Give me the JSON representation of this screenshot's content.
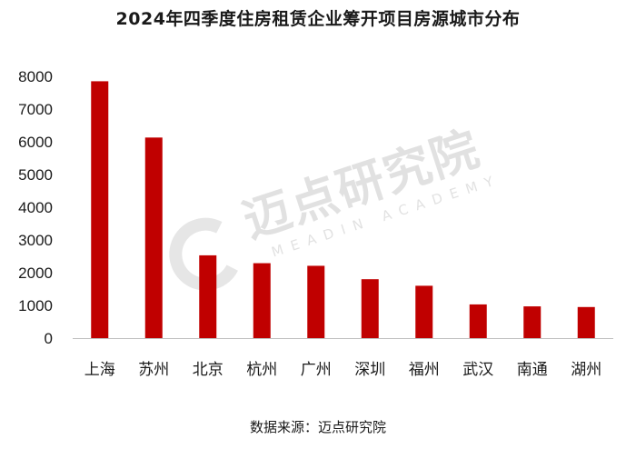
{
  "title": "2024年四季度住房租赁企业筹开项目房源城市分布",
  "source": "数据来源：迈点研究院",
  "watermark": {
    "cn": "迈点研究院",
    "en": "MEADIN ACADEMY"
  },
  "colors": {
    "bar": "#c00000",
    "axis": "#bfbfbf",
    "text": "#1a1a1a"
  },
  "chart_data": {
    "type": "bar",
    "categories": [
      "上海",
      "苏州",
      "北京",
      "杭州",
      "广州",
      "深圳",
      "福州",
      "武汉",
      "南通",
      "湖州"
    ],
    "values": [
      7850,
      6130,
      2530,
      2290,
      2210,
      1800,
      1600,
      1030,
      970,
      950
    ],
    "yticks": [
      0,
      1000,
      2000,
      3000,
      4000,
      5000,
      6000,
      7000,
      8000
    ],
    "ylim": [
      0,
      8000
    ],
    "grid": false,
    "legend": "none"
  }
}
